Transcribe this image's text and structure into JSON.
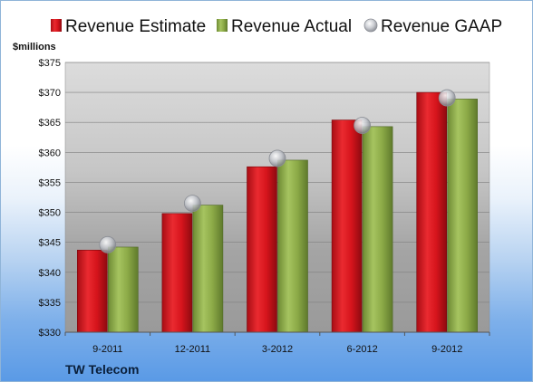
{
  "company": "TW Telecom",
  "colors": {
    "estimate": "#d6141c",
    "actual": "#8caa47",
    "gaap": "#b9bcc2"
  },
  "chart_data": {
    "type": "bar",
    "unit_label": "$millions",
    "categories": [
      "9-2011",
      "12-2011",
      "3-2012",
      "6-2012",
      "9-2012"
    ],
    "series": [
      {
        "name": "Revenue Estimate",
        "style": "bar",
        "values": [
          343.7,
          349.8,
          357.6,
          365.4,
          370.0
        ]
      },
      {
        "name": "Revenue Actual",
        "style": "bar",
        "values": [
          344.2,
          351.2,
          358.7,
          364.3,
          368.9
        ]
      },
      {
        "name": "Revenue GAAP",
        "style": "marker",
        "values": [
          344.6,
          351.5,
          359.0,
          364.5,
          369.1
        ]
      }
    ],
    "ylim": [
      330,
      375
    ],
    "yticks": [
      "$330",
      "$335",
      "$340",
      "$345",
      "$350",
      "$355",
      "$360",
      "$365",
      "$370",
      "$375"
    ],
    "grid": true,
    "legend_position": "top"
  }
}
